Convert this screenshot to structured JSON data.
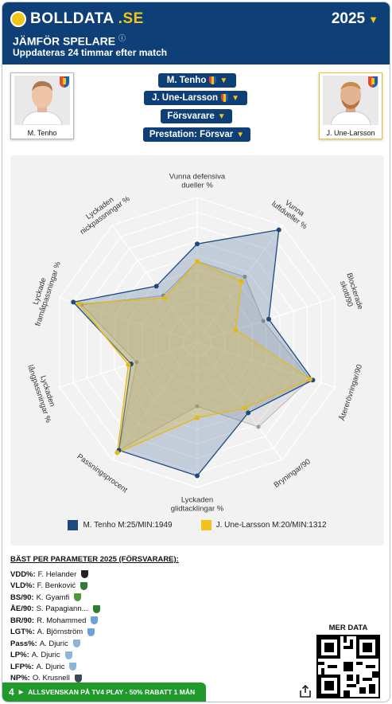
{
  "header": {
    "brand": "BOLLDATA",
    "brand_suffix": ".SE",
    "year": "2025",
    "title": "JÄMFÖR SPELARE",
    "subtitle": "Uppdateras 24 timmar efter match"
  },
  "players": [
    {
      "name": "M. Tenho",
      "color": "#1c4a80"
    },
    {
      "name": "J. Une-Larsson",
      "color": "#f0c419"
    }
  ],
  "selectors": {
    "player1": "M. Tenho",
    "player2": "J. Une-Larsson",
    "position": "Försvarare",
    "performance": "Prestation: Försvar"
  },
  "chart_data": {
    "type": "radar",
    "axes": [
      "Vunna defensiva dueller %",
      "Vunna luftdueller %",
      "Blockerade skott/90",
      "Återerövringar/90",
      "Bryningar/90",
      "Lyckade glidtacklingar %",
      "Passningsprocent",
      "Lyckaden långpassningar %",
      "Lyckade framåtpassningar %",
      "Lyckadd nickpassningar %"
    ],
    "range": [
      0,
      100
    ],
    "series": [
      {
        "name": "M. Tenho M:25/MIN:1949",
        "values": [
          68,
          96,
          52,
          84,
          60,
          92,
          92,
          48,
          90,
          48
        ]
      },
      {
        "name": "J. Une-Larsson M:20/MIN:1312",
        "values": [
          56,
          52,
          28,
          82,
          56,
          52,
          94,
          50,
          86,
          38
        ]
      }
    ],
    "grey_values": [
      56,
      56,
      48,
      82,
      72,
      44,
      92,
      44,
      84,
      40
    ]
  },
  "axis_labels": [
    [
      "Vunna defensiva",
      "dueller %"
    ],
    [
      "Vunna",
      "luftdueller %"
    ],
    [
      "Blockerade",
      "skott/90"
    ],
    [
      "Återerövringar/90"
    ],
    [
      "Bryningar/90"
    ],
    [
      "Lyckaden",
      "glidtacklingar %"
    ],
    [
      "Passningsprocent"
    ],
    [
      "Lyckaden",
      "långpassningar %"
    ],
    [
      "Lyckade",
      "framåtpassningar %"
    ],
    [
      "Lyckaden",
      "nickpassningar %"
    ]
  ],
  "legend": [
    "M. Tenho M:25/MIN:1949",
    "J. Une-Larsson M:20/MIN:1312"
  ],
  "best": {
    "title": "BÄST PER PARAMETER 2025 (FÖRSVARARE):",
    "rows": [
      {
        "key": "VDD%:",
        "name": "F. Helander",
        "color": "#222"
      },
      {
        "key": "VLD%:",
        "name": "F. Benković",
        "color": "#2e7d32"
      },
      {
        "key": "BS/90:",
        "name": "K. Gyamfi",
        "color": "#4a9a3a"
      },
      {
        "key": "ÅE/90:",
        "name": "S. Papagiann...",
        "color": "#2e7d32"
      },
      {
        "key": "BR/90:",
        "name": "R. Mohammed",
        "color": "#6aa3d8"
      },
      {
        "key": "LGT%:",
        "name": "A. Björnström",
        "color": "#6aa3d8"
      },
      {
        "key": "Pass%:",
        "name": "A. Djuric",
        "color": "#8fb4d9"
      },
      {
        "key": "LP%:",
        "name": "A. Djuric",
        "color": "#8fb4d9"
      },
      {
        "key": "LFP%:",
        "name": "A. Djuric",
        "color": "#8fb4d9"
      },
      {
        "key": "NP%:",
        "name": "O. Krusnell",
        "color": "#3a4a5a"
      }
    ]
  },
  "more_data": "MER DATA",
  "promo": "ALLSVENSKAN PÅ TV4 PLAY - 50% RABATT 1 MÅN",
  "promo_badge": "4"
}
